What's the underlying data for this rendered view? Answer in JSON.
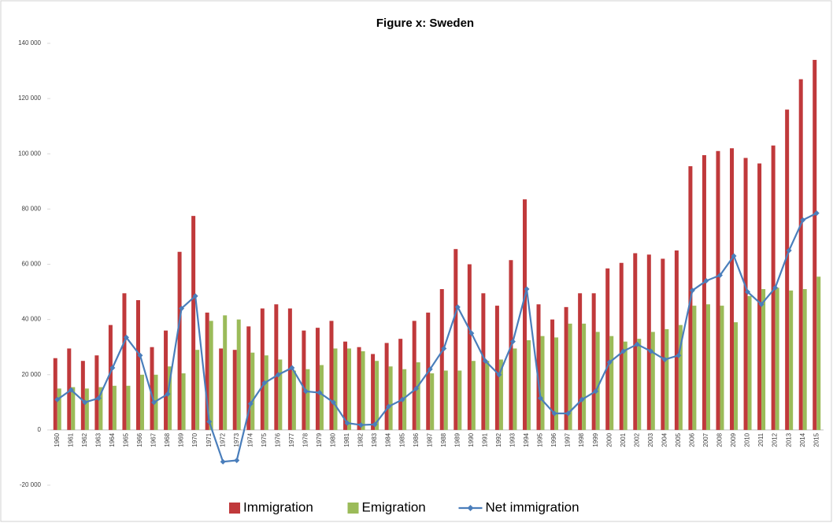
{
  "chart_data": {
    "type": "bar",
    "title": "Figure x: Sweden",
    "categories": [
      "1960",
      "1961",
      "1962",
      "1963",
      "1964",
      "1965",
      "1966",
      "1967",
      "1968",
      "1969",
      "1970",
      "1971",
      "1972",
      "1973",
      "1974",
      "1975",
      "1976",
      "1977",
      "1978",
      "1979",
      "1980",
      "1981",
      "1982",
      "1983",
      "1984",
      "1985",
      "1986",
      "1987",
      "1988",
      "1989",
      "1990",
      "1991",
      "1992",
      "1993",
      "1994",
      "1995",
      "1996",
      "1997",
      "1998",
      "1999",
      "2000",
      "2001",
      "2002",
      "2003",
      "2004",
      "2005",
      "2006",
      "2007",
      "2008",
      "2009",
      "2010",
      "2011",
      "2012",
      "2013",
      "2014",
      "2015"
    ],
    "series": [
      {
        "name": "Immigration",
        "type": "bar",
        "color": "#c0393b",
        "values": [
          26000,
          29500,
          25000,
          27000,
          38000,
          49500,
          47000,
          30000,
          36000,
          64500,
          77500,
          42500,
          29500,
          29000,
          37500,
          44000,
          45500,
          44000,
          36000,
          37000,
          39500,
          32000,
          30000,
          27500,
          31500,
          33000,
          39500,
          42500,
          51000,
          65500,
          60000,
          49500,
          45000,
          61500,
          83500,
          45500,
          40000,
          44500,
          49500,
          49500,
          58500,
          60500,
          64000,
          63500,
          62000,
          65000,
          95500,
          99500,
          101000,
          102000,
          98500,
          96500,
          103000,
          116000,
          127000,
          134000
        ]
      },
      {
        "name": "Emigration",
        "type": "bar",
        "color": "#9bbb59",
        "values": [
          15000,
          15500,
          15000,
          15500,
          16000,
          16000,
          20000,
          20000,
          23000,
          20500,
          29000,
          39500,
          41500,
          40000,
          28000,
          27000,
          25500,
          21500,
          22000,
          23500,
          29500,
          29500,
          28500,
          25000,
          23000,
          22000,
          24500,
          20500,
          21500,
          21500,
          25000,
          25000,
          25500,
          29500,
          32500,
          34000,
          33500,
          38500,
          38500,
          35500,
          34000,
          32000,
          33000,
          35500,
          36500,
          38000,
          45000,
          45500,
          45000,
          39000,
          48500,
          51000,
          51500,
          50500,
          51000,
          55500
        ]
      },
      {
        "name": "Net immigration",
        "type": "line",
        "color": "#4a7ebb",
        "values": [
          11000,
          14500,
          10000,
          11500,
          22500,
          33500,
          27000,
          10000,
          13000,
          44000,
          48500,
          3000,
          -11500,
          -11000,
          9500,
          17000,
          20000,
          22500,
          14000,
          13500,
          10000,
          2500,
          1800,
          2000,
          8500,
          11000,
          15000,
          22000,
          29500,
          44500,
          35000,
          25000,
          20000,
          32000,
          51000,
          11500,
          6000,
          6000,
          11000,
          14000,
          24500,
          28500,
          31000,
          28500,
          25500,
          27000,
          50500,
          54000,
          56000,
          63000,
          50000,
          45500,
          51500,
          65000,
          76000,
          78500
        ]
      }
    ],
    "ylim": [
      -20000,
      140000
    ],
    "yticks": [
      {
        "value": -20000,
        "label": "-20 000"
      },
      0,
      {
        "value": 20000,
        "label": "20 000"
      },
      {
        "value": 40000,
        "label": "40 000"
      },
      {
        "value": 60000,
        "label": "60 000"
      },
      {
        "value": 80000,
        "label": "80 000"
      },
      {
        "value": 100000,
        "label": "100 000"
      },
      {
        "value": 120000,
        "label": "120 000"
      },
      {
        "value": 140000,
        "label": "140 000"
      }
    ],
    "grid": false,
    "legend": "bottom"
  }
}
